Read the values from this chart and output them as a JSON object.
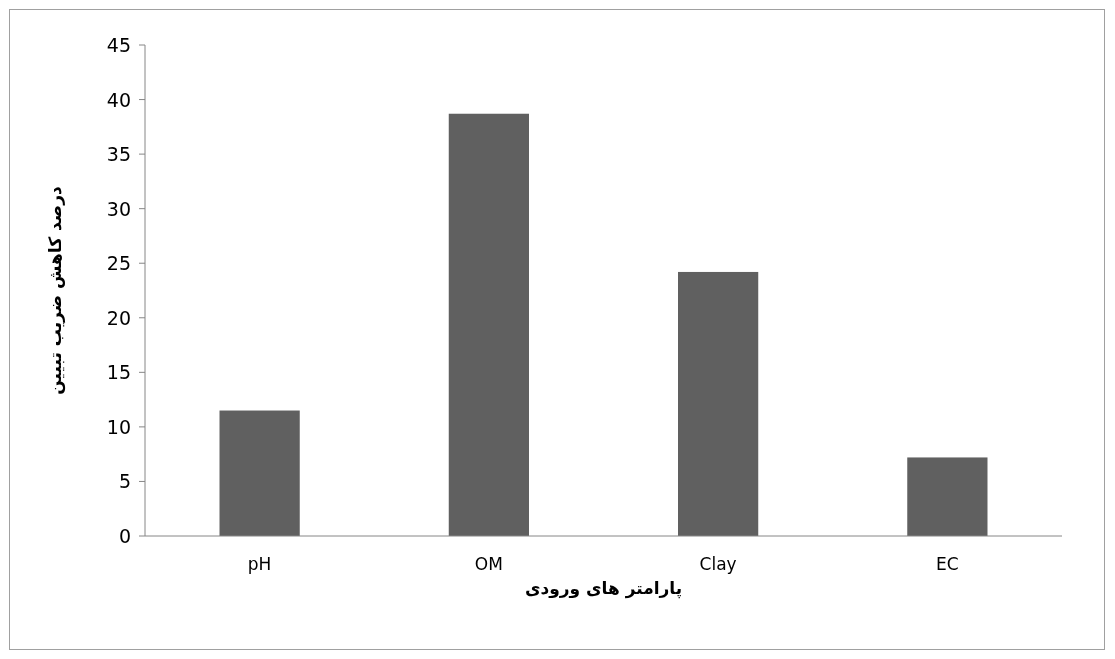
{
  "chart_data": {
    "type": "bar",
    "xlabel": "پارامتر های ورودی",
    "ylabel": "درصد کاهش ضریب تبیین",
    "categories": [
      "pH",
      "OM",
      "Clay",
      "EC"
    ],
    "values": [
      11.5,
      38.7,
      24.2,
      7.2
    ],
    "color": "#606060",
    "ylim": [
      0,
      45
    ],
    "yticks": [
      0,
      5,
      10,
      15,
      20,
      25,
      30,
      35,
      40,
      45
    ],
    "grid": false
  }
}
